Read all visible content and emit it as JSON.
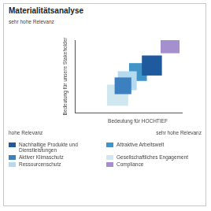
{
  "chart_data": {
    "type": "bubble",
    "title": "Materialitätsanalyse",
    "x_label": "Bedeutung für HOCHTIEF",
    "y_label": "Bedeutung für unsere Stakeholder",
    "x_end_labels": [
      "hohe Relevanz",
      "sehr hohe Relevanz"
    ],
    "y_end_label": "sehr hohe Relevanz",
    "xlim": [
      0,
      10
    ],
    "ylim": [
      0,
      10
    ],
    "grid": false,
    "tick_labels": false,
    "legend": "bottom",
    "series": [
      {
        "name": "Nachhaltige Produkte und Dienstleistungen",
        "color": "#1f5a9e",
        "x": [
          7.2
        ],
        "y": [
          6.5
        ],
        "sizes": [
          18
        ]
      },
      {
        "name": "Aktiver Klimaschutz",
        "color": "#3d80c0",
        "x": [
          4.5
        ],
        "y": [
          3.7
        ],
        "sizes": [
          15
        ]
      },
      {
        "name": "Ressourcenschutz",
        "color": "#b5daf0",
        "x": [
          4.9
        ],
        "y": [
          4.4
        ],
        "sizes": [
          17
        ]
      },
      {
        "name": "Attraktive Arbeitswelt",
        "color": "#3f94c8",
        "x": [
          5.9
        ],
        "y": [
          5.6
        ],
        "sizes": [
          16
        ]
      },
      {
        "name": "Gesellschaftliches Engagement",
        "color": "#cfe7ef",
        "x": [
          4.0
        ],
        "y": [
          2.4
        ],
        "sizes": [
          19
        ]
      },
      {
        "name": "Compliance",
        "color": "#a58fcf",
        "x": [
          8.9
        ],
        "y": [
          9.5
        ],
        "sizes": [
          17
        ]
      }
    ]
  }
}
